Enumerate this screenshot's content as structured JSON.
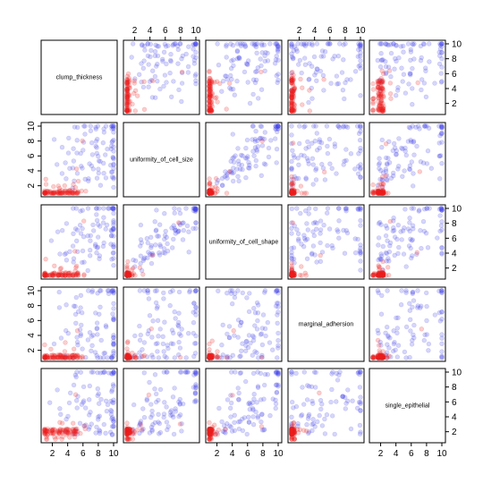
{
  "chart_data": {
    "type": "scatter",
    "variables": [
      "clump_thickness",
      "uniformity_of_cell_size",
      "uniformity_of_cell_shape",
      "marginal_adhersion",
      "single_epithelial"
    ],
    "axis_range": [
      1,
      10
    ],
    "axis_ticks": [
      2,
      4,
      6,
      8,
      10
    ],
    "colors": {
      "blue_group": "rgba(70, 70, 230, 0.22)",
      "red_group": "rgba(235, 30, 30, 0.22)",
      "frame": "#000000"
    },
    "groups": [
      {
        "color_key": "blue_group",
        "points": [
          [
            5,
            10,
            10,
            8,
            7
          ],
          [
            8,
            7,
            5,
            10,
            7
          ],
          [
            10,
            10,
            10,
            8,
            6
          ],
          [
            8,
            10,
            10,
            8,
            7
          ],
          [
            10,
            7,
            7,
            6,
            4
          ],
          [
            7,
            4,
            6,
            4,
            6
          ],
          [
            10,
            5,
            5,
            3,
            6
          ],
          [
            10,
            7,
            7,
            3,
            8
          ],
          [
            7,
            3,
            2,
            10,
            5
          ],
          [
            10,
            10,
            10,
            10,
            10
          ],
          [
            8,
            7,
            8,
            7,
            2
          ],
          [
            6,
            4,
            3,
            1,
            3
          ],
          [
            9,
            5,
            8,
            1,
            2
          ],
          [
            10,
            6,
            6,
            3,
            4
          ],
          [
            10,
            8,
            8,
            4,
            10
          ],
          [
            5,
            6,
            5,
            6,
            10
          ],
          [
            8,
            4,
            5,
            1,
            2
          ],
          [
            6,
            6,
            6,
            9,
            6
          ],
          [
            9,
            10,
            10,
            1,
            10
          ],
          [
            10,
            4,
            3,
            1,
            3
          ],
          [
            5,
            3,
            3,
            3,
            2
          ],
          [
            7,
            8,
            7,
            2,
            4
          ],
          [
            4,
            6,
            4,
            1,
            4
          ],
          [
            10,
            3,
            5,
            1,
            10
          ],
          [
            6,
            10,
            10,
            2,
            8
          ],
          [
            5,
            4,
            4,
            9,
            2
          ],
          [
            3,
            5,
            7,
            8,
            8
          ],
          [
            10,
            5,
            5,
            6,
            8
          ],
          [
            8,
            6,
            5,
            4,
            3
          ],
          [
            9,
            4,
            5,
            10,
            6
          ],
          [
            10,
            10,
            10,
            7,
            10
          ],
          [
            5,
            5,
            7,
            8,
            6
          ],
          [
            7,
            5,
            10,
            10,
            10
          ],
          [
            10,
            6,
            4,
            1,
            3
          ],
          [
            8,
            10,
            10,
            10,
            8
          ],
          [
            5,
            8,
            7,
            7,
            10
          ],
          [
            4,
            4,
            4,
            4,
            6
          ],
          [
            8,
            8,
            8,
            1,
            2
          ],
          [
            10,
            7,
            6,
            10,
            5
          ],
          [
            6,
            8,
            7,
            5,
            6
          ],
          [
            10,
            9,
            7,
            1,
            10
          ],
          [
            9,
            6,
            9,
            2,
            10
          ],
          [
            10,
            10,
            10,
            3,
            10
          ],
          [
            4,
            3,
            3,
            1,
            2
          ],
          [
            7,
            10,
            8,
            4,
            8
          ],
          [
            6,
            3,
            3,
            5,
            3
          ],
          [
            10,
            4,
            4,
            10,
            2
          ],
          [
            8,
            5,
            5,
            5,
            2
          ],
          [
            10,
            10,
            7,
            8,
            7
          ],
          [
            5,
            7,
            7,
            1,
            5
          ],
          [
            9,
            8,
            8,
            5,
            6
          ],
          [
            3,
            4,
            4,
            10,
            5
          ],
          [
            10,
            8,
            10,
            10,
            6
          ],
          [
            8,
            10,
            10,
            7,
            10
          ],
          [
            7,
            6,
            6,
            3,
            2
          ],
          [
            10,
            2,
            2,
            1,
            2
          ],
          [
            9,
            9,
            10,
            10,
            10
          ],
          [
            6,
            5,
            4,
            4,
            3
          ],
          [
            8,
            4,
            4,
            5,
            4
          ],
          [
            10,
            3,
            3,
            10,
            2
          ],
          [
            5,
            10,
            10,
            3,
            8
          ],
          [
            7,
            5,
            6,
            3,
            3
          ],
          [
            10,
            10,
            10,
            4,
            8
          ],
          [
            4,
            8,
            8,
            5,
            4
          ],
          [
            8,
            3,
            8,
            3,
            4
          ],
          [
            9,
            7,
            7,
            5,
            5
          ],
          [
            10,
            6,
            7,
            2,
            5
          ],
          [
            6,
            10,
            7,
            7,
            6
          ],
          [
            5,
            4,
            6,
            7,
            9
          ],
          [
            8,
            2,
            3,
            1,
            6
          ],
          [
            10,
            8,
            7,
            4,
            3
          ],
          [
            7,
            3,
            4,
            4,
            3
          ],
          [
            10,
            10,
            10,
            6,
            10
          ],
          [
            3,
            7,
            7,
            4,
            4
          ],
          [
            9,
            10,
            10,
            10,
            10
          ],
          [
            8,
            6,
            4,
            10,
            10
          ],
          [
            10,
            5,
            8,
            10,
            3
          ],
          [
            6,
            7,
            10,
            8,
            5
          ],
          [
            10,
            3,
            6,
            2,
            3
          ],
          [
            5,
            2,
            3,
            4,
            2
          ],
          [
            7,
            9,
            4,
            10,
            10
          ],
          [
            10,
            4,
            5,
            6,
            4
          ],
          [
            8,
            8,
            9,
            6,
            6
          ],
          [
            9,
            3,
            5,
            2,
            3
          ],
          [
            10,
            10,
            8,
            10,
            6
          ],
          [
            4,
            5,
            4,
            8,
            7
          ],
          [
            6,
            9,
            8,
            4,
            10
          ],
          [
            10,
            7,
            9,
            3,
            4
          ],
          [
            8,
            5,
            6,
            2,
            4
          ],
          [
            2,
            8,
            6,
            3,
            6
          ]
        ]
      },
      {
        "color_key": "red_group",
        "points": [
          [
            5,
            1,
            1,
            1,
            2
          ],
          [
            5,
            4,
            4,
            5,
            7
          ],
          [
            3,
            1,
            1,
            1,
            2
          ],
          [
            6,
            8,
            8,
            1,
            3
          ],
          [
            4,
            1,
            1,
            3,
            2
          ],
          [
            1,
            1,
            1,
            1,
            2
          ],
          [
            2,
            1,
            2,
            1,
            2
          ],
          [
            2,
            1,
            1,
            1,
            2
          ],
          [
            4,
            2,
            1,
            1,
            2
          ],
          [
            1,
            1,
            1,
            1,
            1
          ],
          [
            2,
            1,
            1,
            1,
            2
          ],
          [
            1,
            1,
            1,
            1,
            2
          ],
          [
            3,
            2,
            1,
            1,
            1
          ],
          [
            4,
            1,
            1,
            1,
            2
          ],
          [
            5,
            1,
            1,
            1,
            2
          ],
          [
            3,
            1,
            1,
            1,
            2
          ],
          [
            1,
            1,
            1,
            1,
            2
          ],
          [
            3,
            1,
            1,
            1,
            1
          ],
          [
            2,
            1,
            1,
            2,
            2
          ],
          [
            1,
            1,
            3,
            1,
            2
          ],
          [
            3,
            1,
            1,
            1,
            2
          ],
          [
            4,
            1,
            1,
            1,
            2
          ],
          [
            1,
            1,
            1,
            1,
            2
          ],
          [
            2,
            1,
            1,
            1,
            2
          ],
          [
            5,
            1,
            1,
            1,
            2
          ],
          [
            1,
            1,
            1,
            1,
            1
          ],
          [
            5,
            2,
            2,
            2,
            2
          ],
          [
            1,
            1,
            1,
            3,
            2
          ],
          [
            3,
            1,
            1,
            1,
            3
          ],
          [
            4,
            1,
            1,
            1,
            2
          ],
          [
            2,
            1,
            1,
            1,
            2
          ],
          [
            1,
            1,
            1,
            1,
            2
          ],
          [
            3,
            1,
            2,
            1,
            2
          ],
          [
            5,
            1,
            1,
            1,
            1
          ],
          [
            6,
            1,
            1,
            1,
            2
          ],
          [
            1,
            1,
            1,
            1,
            2
          ],
          [
            4,
            1,
            1,
            1,
            2
          ],
          [
            3,
            2,
            2,
            1,
            2
          ],
          [
            5,
            3,
            2,
            1,
            3
          ],
          [
            1,
            1,
            1,
            1,
            2
          ],
          [
            2,
            1,
            1,
            1,
            2
          ],
          [
            3,
            1,
            1,
            1,
            1
          ],
          [
            4,
            1,
            1,
            1,
            2
          ],
          [
            1,
            1,
            1,
            1,
            2
          ],
          [
            5,
            1,
            2,
            1,
            2
          ],
          [
            2,
            1,
            1,
            1,
            1
          ],
          [
            1,
            1,
            1,
            1,
            2
          ],
          [
            3,
            1,
            1,
            1,
            2
          ],
          [
            4,
            1,
            1,
            2,
            2
          ],
          [
            5,
            1,
            1,
            1,
            2
          ],
          [
            1,
            1,
            1,
            1,
            2
          ],
          [
            2,
            2,
            1,
            1,
            2
          ],
          [
            3,
            1,
            1,
            1,
            2
          ],
          [
            4,
            1,
            1,
            1,
            2
          ],
          [
            1,
            2,
            1,
            1,
            2
          ],
          [
            5,
            1,
            1,
            1,
            2
          ],
          [
            3,
            1,
            1,
            1,
            2
          ],
          [
            2,
            1,
            1,
            1,
            1
          ],
          [
            1,
            1,
            1,
            1,
            2
          ],
          [
            4,
            1,
            1,
            1,
            2
          ],
          [
            5,
            1,
            1,
            1,
            2
          ],
          [
            3,
            1,
            1,
            1,
            2
          ],
          [
            1,
            1,
            1,
            1,
            2
          ],
          [
            2,
            1,
            1,
            1,
            2
          ],
          [
            4,
            1,
            1,
            1,
            1
          ],
          [
            6,
            1,
            1,
            1,
            2
          ],
          [
            5,
            2,
            1,
            1,
            2
          ],
          [
            1,
            1,
            1,
            1,
            2
          ],
          [
            3,
            1,
            1,
            1,
            2
          ],
          [
            4,
            1,
            1,
            1,
            2
          ],
          [
            5,
            1,
            1,
            1,
            2
          ],
          [
            2,
            1,
            1,
            1,
            2
          ],
          [
            1,
            1,
            1,
            1,
            1
          ],
          [
            3,
            1,
            1,
            1,
            2
          ],
          [
            5,
            1,
            1,
            1,
            2
          ],
          [
            4,
            1,
            1,
            1,
            2
          ],
          [
            1,
            1,
            1,
            1,
            2
          ],
          [
            2,
            1,
            1,
            1,
            2
          ],
          [
            3,
            1,
            1,
            1,
            2
          ],
          [
            5,
            1,
            1,
            1,
            2
          ],
          [
            1,
            3,
            1,
            1,
            2
          ],
          [
            4,
            1,
            1,
            1,
            2
          ],
          [
            2,
            1,
            1,
            1,
            2
          ],
          [
            3,
            1,
            1,
            1,
            2
          ],
          [
            5,
            1,
            1,
            1,
            2
          ],
          [
            1,
            1,
            1,
            1,
            2
          ],
          [
            4,
            1,
            1,
            1,
            2
          ],
          [
            3,
            1,
            1,
            1,
            2
          ],
          [
            2,
            1,
            1,
            1,
            2
          ],
          [
            5,
            1,
            1,
            1,
            2
          ],
          [
            1,
            1,
            1,
            1,
            2
          ],
          [
            3,
            1,
            1,
            1,
            2
          ],
          [
            4,
            1,
            1,
            1,
            2
          ],
          [
            5,
            1,
            1,
            1,
            2
          ],
          [
            2,
            1,
            1,
            1,
            2
          ],
          [
            1,
            1,
            1,
            1,
            2
          ],
          [
            3,
            1,
            1,
            1,
            3
          ],
          [
            4,
            1,
            1,
            1,
            2
          ],
          [
            5,
            1,
            1,
            1,
            2
          ],
          [
            1,
            1,
            1,
            1,
            2
          ]
        ]
      }
    ]
  }
}
